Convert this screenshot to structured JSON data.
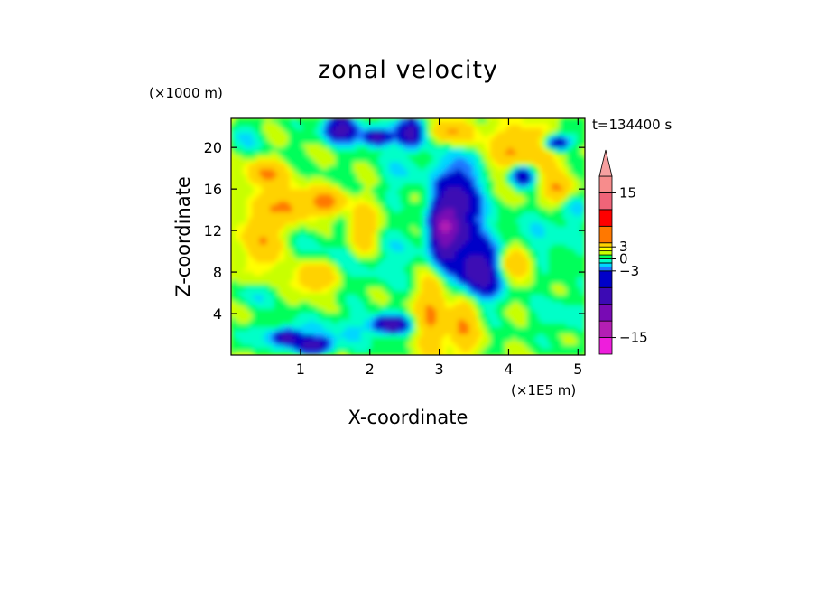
{
  "chart_data": {
    "type": "heatmap",
    "title": "zonal velocity",
    "time_label": "t=134400 s",
    "xlabel": "X-coordinate",
    "ylabel": "Z-coordinate",
    "x_units": "(×1E5 m)",
    "y_units": "(×1000 m)",
    "xlim": [
      0,
      5.1
    ],
    "ylim": [
      0,
      22.8
    ],
    "xticks": [
      1,
      2,
      3,
      4,
      5
    ],
    "yticks": [
      4,
      8,
      12,
      16,
      20
    ],
    "colorbar": {
      "levels": [
        -18,
        -15,
        -12,
        -9,
        -6,
        -3,
        -2,
        -1,
        0,
        1,
        2,
        3,
        6,
        9,
        12,
        15,
        18
      ],
      "colors": [
        "#ee1edc",
        "#b41eb4",
        "#780ab4",
        "#3c0ab4",
        "#0000c8",
        "#1e78ff",
        "#00d7ff",
        "#00ffc8",
        "#00ff5a",
        "#c8ff00",
        "#ffff00",
        "#ffd200",
        "#ff7800",
        "#ff0000",
        "#f06478",
        "#f78c8c",
        "#f7a0a0"
      ],
      "tick_labels": [
        "15",
        "3",
        "0",
        "−3",
        "−15"
      ],
      "tick_values": [
        15,
        3,
        0,
        -3,
        -15
      ],
      "extend": "max"
    }
  }
}
